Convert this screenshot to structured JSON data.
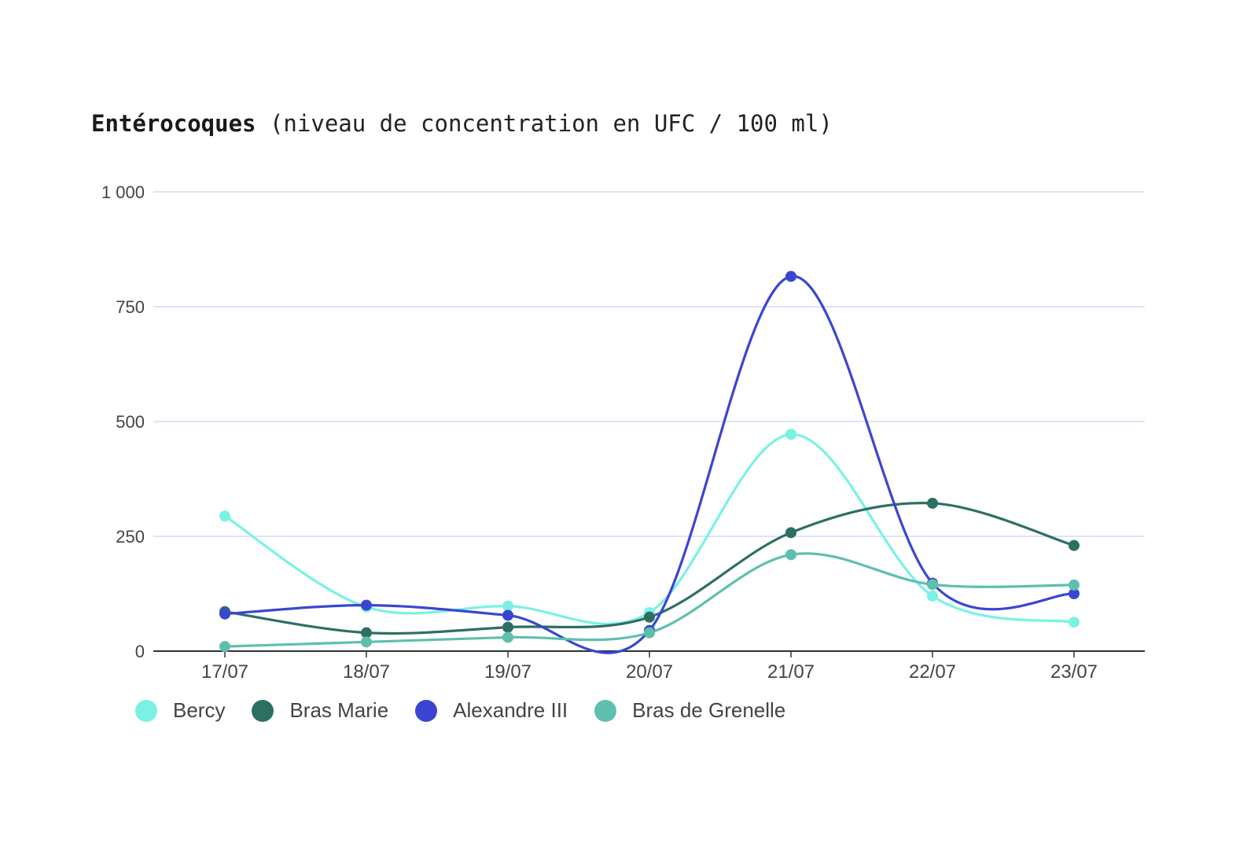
{
  "chart_data": {
    "type": "line",
    "title_bold": "Entérocoques",
    "title_rest": " (niveau de concentration en UFC / 100 ml)",
    "xlabel": "",
    "ylabel": "",
    "categories": [
      "17/07",
      "18/07",
      "19/07",
      "20/07",
      "21/07",
      "22/07",
      "23/07"
    ],
    "ylim": [
      0,
      1000
    ],
    "yticks": [
      0,
      250,
      500,
      750,
      1000
    ],
    "ytick_labels": [
      "0",
      "250",
      "500",
      "750",
      "1 000"
    ],
    "grid": true,
    "legend_position": "bottom-left",
    "curve": "smooth",
    "series": [
      {
        "name": "Bercy",
        "color": "#7af2e3",
        "values": [
          294,
          96,
          98,
          84,
          472,
          120,
          63
        ]
      },
      {
        "name": "Bras Marie",
        "color": "#2e6f64",
        "values": [
          86,
          40,
          52,
          74,
          258,
          322,
          230
        ]
      },
      {
        "name": "Alexandre III",
        "color": "#3a46d1",
        "values": [
          81,
          100,
          78,
          45,
          816,
          148,
          125
        ]
      },
      {
        "name": "Bras de Grenelle",
        "color": "#5fbfae",
        "values": [
          10,
          20,
          30,
          40,
          210,
          145,
          144
        ]
      }
    ]
  }
}
